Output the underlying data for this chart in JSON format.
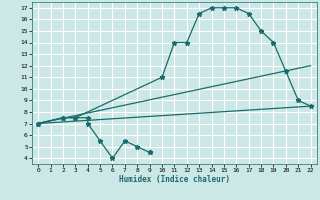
{
  "xlabel": "Humidex (Indice chaleur)",
  "bg_color": "#cce8e6",
  "grid_color": "#ffffff",
  "line_color": "#1a6b6b",
  "xlim": [
    -0.5,
    22.5
  ],
  "ylim": [
    3.5,
    17.5
  ],
  "xticks": [
    0,
    1,
    2,
    3,
    4,
    5,
    6,
    7,
    8,
    9,
    10,
    11,
    12,
    13,
    14,
    15,
    16,
    17,
    18,
    19,
    20,
    21,
    22
  ],
  "yticks": [
    4,
    5,
    6,
    7,
    8,
    9,
    10,
    11,
    12,
    13,
    14,
    15,
    16,
    17
  ],
  "line1_x": [
    0,
    2,
    3,
    4,
    4,
    5,
    6,
    7,
    8,
    9,
    9
  ],
  "line1_y": [
    7,
    7.5,
    7.5,
    7.5,
    7,
    5.5,
    4,
    5.5,
    5,
    4.5,
    4.5
  ],
  "line2_x": [
    0,
    2,
    3,
    10,
    11,
    12,
    13,
    14,
    15,
    16,
    17,
    18,
    19,
    20,
    21,
    22
  ],
  "line2_y": [
    7,
    7.5,
    7.5,
    11,
    14,
    14,
    16.5,
    17,
    17,
    17,
    16.5,
    15,
    14,
    11.5,
    9,
    8.5
  ],
  "line3_x": [
    0,
    22
  ],
  "line3_y": [
    7,
    12
  ],
  "line4_x": [
    0,
    22
  ],
  "line4_y": [
    7,
    8.5
  ]
}
